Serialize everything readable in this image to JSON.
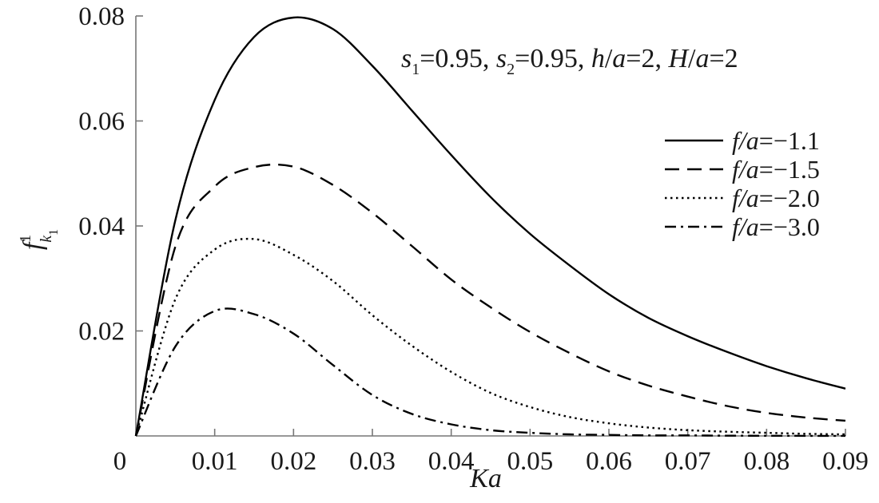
{
  "chart_data": {
    "type": "line",
    "title": "",
    "annotation": {
      "s1_symbol": "s",
      "s1_sub": "1",
      "s1_value": "=0.95, ",
      "s2_symbol": "s",
      "s2_sub": "2",
      "s2_value": "=0.95, ",
      "h_symbol": "h",
      "h_over": "/",
      "h_a": "a",
      "h_value": "=2, ",
      "H_symbol": "H",
      "H_over": "/",
      "H_a": "a",
      "H_value": "=2"
    },
    "xlabel": "Ka",
    "ylabel": {
      "symbol": "f",
      "superscript": "1",
      "subscript": "k",
      "sub_subscript": "1"
    },
    "xlim": [
      0,
      0.09
    ],
    "ylim": [
      0,
      0.08
    ],
    "xticks": [
      0,
      0.01,
      0.02,
      0.03,
      0.04,
      0.05,
      0.06,
      0.07,
      0.08,
      0.09
    ],
    "xtick_labels": [
      "0",
      "0.01",
      "0.02",
      "0.03",
      "0.04",
      "0.05",
      "0.06",
      "0.07",
      "0.08",
      "0.09"
    ],
    "yticks": [
      0.02,
      0.04,
      0.06,
      0.08
    ],
    "ytick_labels": [
      "0.02",
      "0.04",
      "0.06",
      "0.08"
    ],
    "grid": false,
    "legend_position": "right",
    "series": [
      {
        "name": "f/a=−1.1",
        "legend_var": "f/a",
        "legend_value": "=−1.1",
        "dash": "solid",
        "x": [
          0,
          0.005,
          0.01,
          0.015,
          0.02,
          0.025,
          0.03,
          0.035,
          0.04,
          0.045,
          0.05,
          0.055,
          0.06,
          0.065,
          0.07,
          0.075,
          0.08,
          0.085,
          0.09
        ],
        "y": [
          0,
          0.041,
          0.064,
          0.076,
          0.0797,
          0.0775,
          0.0705,
          0.062,
          0.0535,
          0.0455,
          0.0385,
          0.0325,
          0.027,
          0.0225,
          0.019,
          0.016,
          0.0133,
          0.011,
          0.009
        ]
      },
      {
        "name": "f/a=−1.5",
        "legend_var": "f/a",
        "legend_value": "=−1.5",
        "dash": "dashed",
        "x": [
          0,
          0.005,
          0.01,
          0.015,
          0.02,
          0.025,
          0.03,
          0.035,
          0.04,
          0.045,
          0.05,
          0.055,
          0.06,
          0.065,
          0.07,
          0.075,
          0.08,
          0.085,
          0.09
        ],
        "y": [
          0,
          0.036,
          0.0475,
          0.0512,
          0.0513,
          0.0478,
          0.0425,
          0.0362,
          0.0298,
          0.0245,
          0.0198,
          0.0158,
          0.0123,
          0.0096,
          0.0075,
          0.0057,
          0.0044,
          0.0035,
          0.0029
        ]
      },
      {
        "name": "f/a=−2.0",
        "legend_var": "f/a",
        "legend_value": "=−2.0",
        "dash": "dotted",
        "x": [
          0,
          0.005,
          0.01,
          0.015,
          0.02,
          0.025,
          0.03,
          0.035,
          0.04,
          0.045,
          0.05,
          0.055,
          0.06,
          0.065,
          0.07,
          0.075,
          0.08,
          0.085,
          0.09
        ],
        "y": [
          0,
          0.026,
          0.0355,
          0.0375,
          0.0345,
          0.0295,
          0.023,
          0.0172,
          0.0122,
          0.0082,
          0.0055,
          0.0036,
          0.0024,
          0.0016,
          0.0011,
          0.0008,
          0.0006,
          0.0004,
          0.0003
        ]
      },
      {
        "name": "f/a=−3.0",
        "legend_var": "f/a",
        "legend_value": "=−3.0",
        "dash": "dashdot",
        "x": [
          0,
          0.005,
          0.01,
          0.015,
          0.02,
          0.025,
          0.03,
          0.035,
          0.04,
          0.045,
          0.05,
          0.055,
          0.06,
          0.065,
          0.07,
          0.075,
          0.08,
          0.085,
          0.09
        ],
        "y": [
          0,
          0.017,
          0.0238,
          0.0232,
          0.0195,
          0.0135,
          0.0078,
          0.0042,
          0.0022,
          0.0011,
          0.0006,
          0.0003,
          0.0002,
          0.0001,
          0.0001,
          5e-05,
          3e-05,
          2e-05,
          1e-05
        ]
      }
    ]
  }
}
